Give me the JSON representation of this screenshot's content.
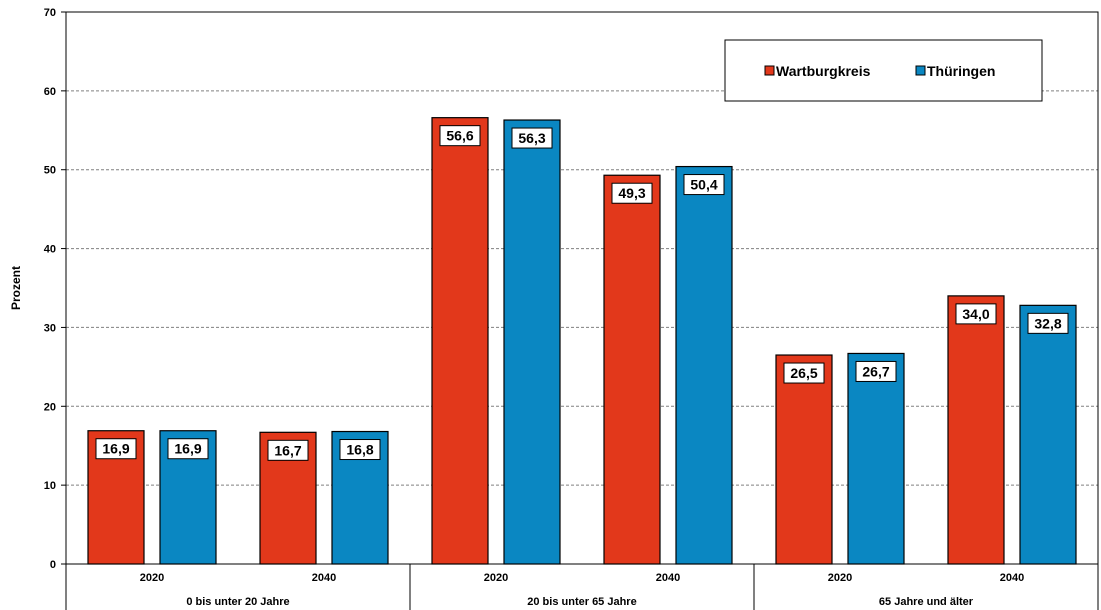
{
  "chart_data": {
    "type": "bar",
    "ylabel": "Prozent",
    "ylim": [
      0,
      70
    ],
    "yticks": [
      "0",
      "10",
      "20",
      "30",
      "40",
      "50",
      "60",
      "70"
    ],
    "grid": true,
    "legend_position": "top-right",
    "groups": [
      {
        "name": "0 bis unter 20 Jahre",
        "categories": [
          "2020",
          "2040"
        ]
      },
      {
        "name": "20 bis unter 65 Jahre",
        "categories": [
          "2020",
          "2040"
        ]
      },
      {
        "name": "65 Jahre und älter",
        "categories": [
          "2020",
          "2040"
        ]
      }
    ],
    "series": [
      {
        "name": "Wartburgkreis",
        "color": "#e2381b",
        "values": [
          16.9,
          16.7,
          56.6,
          49.3,
          26.5,
          34.0
        ],
        "labels": [
          "16,9",
          "16,7",
          "56,6",
          "49,3",
          "26,5",
          "34,0"
        ]
      },
      {
        "name": "Thüringen",
        "color": "#0a87c2",
        "values": [
          16.9,
          16.8,
          56.3,
          50.4,
          26.7,
          32.8
        ],
        "labels": [
          "16,9",
          "16,8",
          "56,3",
          "50,4",
          "26,7",
          "32,8"
        ]
      }
    ]
  }
}
